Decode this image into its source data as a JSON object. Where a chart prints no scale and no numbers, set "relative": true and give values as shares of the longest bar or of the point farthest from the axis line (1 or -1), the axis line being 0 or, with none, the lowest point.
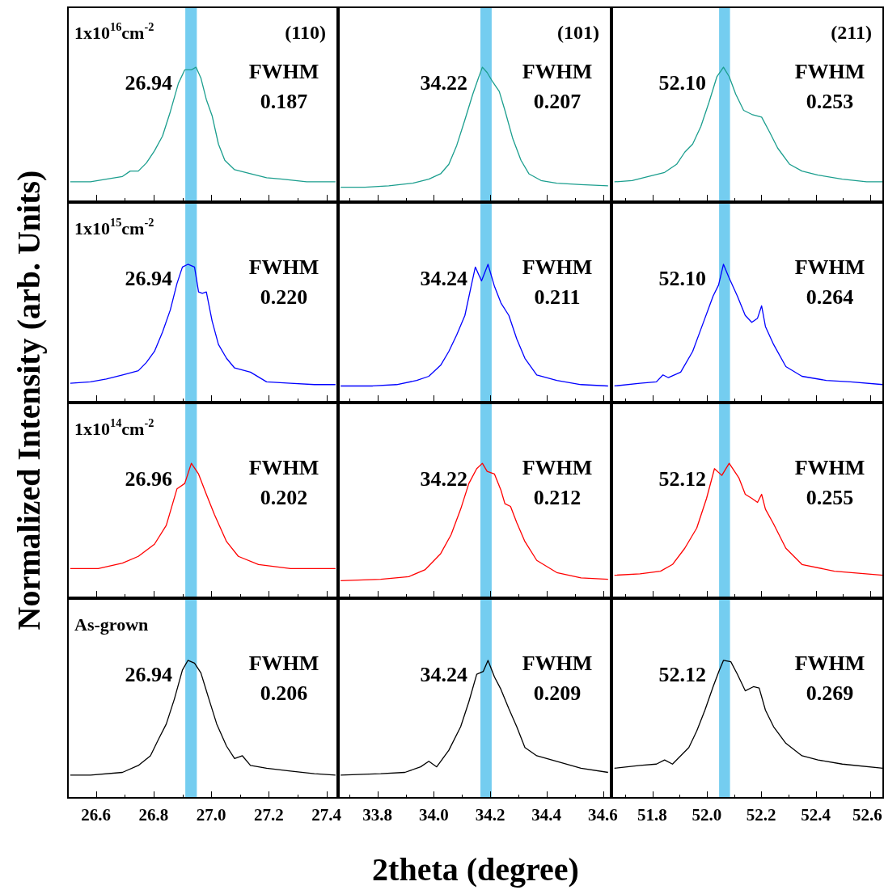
{
  "chart_data": [
    {
      "type": "line",
      "color": "#1b9e8e",
      "relative": true,
      "tick_labels": false,
      "ylabel": "Normalized  Intensity (arb. Units)",
      "xlim": [
        26.5,
        27.44
      ],
      "xticks": [
        26.6,
        {
          "value": 26.7,
          "label": null
        },
        26.8,
        {
          "value": 26.9,
          "label": null
        },
        27,
        {
          "value": 27.1,
          "label": null
        },
        27.2,
        {
          "value": 27.3,
          "label": null
        },
        27.4
      ],
      "bands": [
        {
          "axis": "x",
          "from": 26.91,
          "to": 26.95,
          "color": "#74cdf0"
        }
      ],
      "annotations": [
        "26.94",
        "FWHM",
        "0.187",
        "1x10$^{16}$cm$^{-2}$",
        "(110)"
      ],
      "x": [
        26.511,
        26.581,
        26.636,
        26.692,
        26.719,
        26.747,
        26.775,
        26.803,
        26.831,
        26.858,
        26.886,
        26.908,
        26.931,
        26.947,
        26.964,
        26.983,
        27.003,
        27.025,
        27.047,
        27.081,
        27.136,
        27.192,
        27.247,
        27.331,
        27.431
      ],
      "values": [
        0.15,
        0.15,
        0.17,
        0.19,
        0.23,
        0.23,
        0.29,
        0.38,
        0.49,
        0.67,
        0.88,
        0.98,
        0.98,
        1,
        0.92,
        0.76,
        0.64,
        0.43,
        0.31,
        0.24,
        0.21,
        0.18,
        0.17,
        0.15,
        0.15
      ]
    },
    {
      "type": "line",
      "color": "#1b9e8e",
      "relative": true,
      "tick_labels": false,
      "xlim": [
        33.66,
        34.63
      ],
      "xticks": [
        {
          "value": 33.7,
          "label": null
        },
        33.8,
        {
          "value": 33.9,
          "label": null
        },
        34,
        {
          "value": 34.1,
          "label": null
        },
        34.2,
        {
          "value": 34.3,
          "label": null
        },
        34.4,
        {
          "value": 34.5,
          "label": null
        },
        34.6
      ],
      "bands": [
        {
          "axis": "x",
          "from": 34.165,
          "to": 34.205,
          "color": "#74cdf0"
        }
      ],
      "annotations": [
        "34.22",
        "FWHM",
        "0.207",
        "(101)"
      ],
      "x": [
        33.669,
        33.755,
        33.84,
        33.925,
        33.982,
        34.024,
        34.053,
        34.081,
        34.11,
        34.138,
        34.158,
        34.172,
        34.189,
        34.209,
        34.232,
        34.252,
        34.28,
        34.309,
        34.337,
        34.38,
        34.436,
        34.522,
        34.618
      ],
      "values": [
        0.11,
        0.11,
        0.12,
        0.14,
        0.17,
        0.21,
        0.28,
        0.42,
        0.61,
        0.8,
        0.92,
        1,
        0.96,
        0.89,
        0.82,
        0.68,
        0.47,
        0.31,
        0.21,
        0.16,
        0.14,
        0.13,
        0.12
      ]
    },
    {
      "type": "line",
      "color": "#1b9e8e",
      "relative": true,
      "tick_labels": false,
      "xlim": [
        51.65,
        52.65
      ],
      "xticks": [
        {
          "value": 51.7,
          "label": null
        },
        51.8,
        {
          "value": 51.9,
          "label": null
        },
        52,
        {
          "value": 52.1,
          "label": null
        },
        52.2,
        {
          "value": 52.3,
          "label": null
        },
        52.4,
        {
          "value": 52.5,
          "label": null
        },
        52.6
      ],
      "bands": [
        {
          "axis": "x",
          "from": 52.045,
          "to": 52.085,
          "color": "#74cdf0"
        }
      ],
      "annotations": [
        "52.10",
        "FWHM",
        "0.253",
        "(211)"
      ],
      "x": [
        51.661,
        51.726,
        51.785,
        51.845,
        51.889,
        51.919,
        51.948,
        51.978,
        52.008,
        52.037,
        52.061,
        52.082,
        52.106,
        52.135,
        52.165,
        52.201,
        52.23,
        52.26,
        52.304,
        52.349,
        52.408,
        52.497,
        52.586,
        52.646
      ],
      "values": [
        0.15,
        0.16,
        0.19,
        0.22,
        0.28,
        0.37,
        0.43,
        0.56,
        0.74,
        0.93,
        1,
        0.93,
        0.8,
        0.68,
        0.65,
        0.63,
        0.52,
        0.4,
        0.28,
        0.23,
        0.2,
        0.17,
        0.15,
        0.15
      ]
    },
    {
      "type": "line",
      "color": "#0000ff",
      "relative": true,
      "tick_labels": false,
      "xlim": [
        26.5,
        27.44
      ],
      "xticks": [
        26.6,
        {
          "value": 26.7,
          "label": null
        },
        26.8,
        {
          "value": 26.9,
          "label": null
        },
        27,
        {
          "value": 27.1,
          "label": null
        },
        27.2,
        {
          "value": 27.3,
          "label": null
        },
        27.4
      ],
      "bands": [
        {
          "axis": "x",
          "from": 26.91,
          "to": 26.95,
          "color": "#74cdf0"
        }
      ],
      "annotations": [
        "26.94",
        "FWHM",
        "0.220",
        "1x10$^{15}$cm$^{-2}$"
      ],
      "x": [
        26.511,
        26.581,
        26.636,
        26.692,
        26.747,
        26.775,
        26.803,
        26.831,
        26.858,
        26.881,
        26.9,
        26.919,
        26.942,
        26.956,
        26.969,
        26.983,
        27.003,
        27.025,
        27.053,
        27.081,
        27.136,
        27.192,
        27.275,
        27.358,
        27.431
      ],
      "values": [
        0.14,
        0.15,
        0.17,
        0.2,
        0.23,
        0.29,
        0.37,
        0.51,
        0.67,
        0.86,
        0.98,
        1,
        0.98,
        0.8,
        0.79,
        0.8,
        0.59,
        0.42,
        0.32,
        0.25,
        0.22,
        0.15,
        0.14,
        0.13,
        0.13
      ]
    },
    {
      "type": "line",
      "color": "#0000ff",
      "relative": true,
      "tick_labels": false,
      "xlim": [
        33.66,
        34.63
      ],
      "xticks": [
        {
          "value": 33.7,
          "label": null
        },
        33.8,
        {
          "value": 33.9,
          "label": null
        },
        34,
        {
          "value": 34.1,
          "label": null
        },
        34.2,
        {
          "value": 34.3,
          "label": null
        },
        34.4,
        {
          "value": 34.5,
          "label": null
        },
        34.6
      ],
      "bands": [
        {
          "axis": "x",
          "from": 34.165,
          "to": 34.205,
          "color": "#74cdf0"
        }
      ],
      "annotations": [
        "34.24",
        "FWHM",
        "0.211"
      ],
      "x": [
        33.669,
        33.783,
        33.868,
        33.939,
        33.982,
        34.024,
        34.053,
        34.081,
        34.11,
        34.132,
        34.147,
        34.169,
        34.192,
        34.215,
        34.238,
        34.266,
        34.294,
        34.323,
        34.365,
        34.436,
        34.522,
        34.618
      ],
      "values": [
        0.12,
        0.12,
        0.13,
        0.16,
        0.19,
        0.27,
        0.37,
        0.49,
        0.63,
        0.84,
        0.98,
        0.88,
        1,
        0.84,
        0.72,
        0.63,
        0.46,
        0.32,
        0.2,
        0.16,
        0.13,
        0.12
      ]
    },
    {
      "type": "line",
      "color": "#0000ff",
      "relative": true,
      "tick_labels": false,
      "xlim": [
        51.65,
        52.65
      ],
      "xticks": [
        {
          "value": 51.7,
          "label": null
        },
        51.8,
        {
          "value": 51.9,
          "label": null
        },
        52,
        {
          "value": 52.1,
          "label": null
        },
        52.2,
        {
          "value": 52.3,
          "label": null
        },
        52.4,
        {
          "value": 52.5,
          "label": null
        },
        52.6
      ],
      "bands": [
        {
          "axis": "x",
          "from": 52.045,
          "to": 52.085,
          "color": "#74cdf0"
        }
      ],
      "annotations": [
        "52.10",
        "FWHM",
        "0.264"
      ],
      "x": [
        51.661,
        51.755,
        51.815,
        51.839,
        51.859,
        51.904,
        51.948,
        51.978,
        52.008,
        52.023,
        52.043,
        52.061,
        52.082,
        52.112,
        52.141,
        52.165,
        52.186,
        52.201,
        52.215,
        52.245,
        52.29,
        52.349,
        52.438,
        52.527,
        52.646
      ],
      "values": [
        0.12,
        0.14,
        0.15,
        0.2,
        0.18,
        0.22,
        0.37,
        0.53,
        0.69,
        0.77,
        0.85,
        1,
        0.9,
        0.77,
        0.63,
        0.58,
        0.61,
        0.7,
        0.55,
        0.42,
        0.26,
        0.19,
        0.16,
        0.15,
        0.13
      ]
    },
    {
      "type": "line",
      "color": "#ff0000",
      "relative": true,
      "tick_labels": false,
      "xlim": [
        26.5,
        27.44
      ],
      "xticks": [
        26.6,
        {
          "value": 26.7,
          "label": null
        },
        26.8,
        {
          "value": 26.9,
          "label": null
        },
        27,
        {
          "value": 27.1,
          "label": null
        },
        27.2,
        {
          "value": 27.3,
          "label": null
        },
        27.4
      ],
      "bands": [
        {
          "axis": "x",
          "from": 26.91,
          "to": 26.95,
          "color": "#74cdf0"
        }
      ],
      "annotations": [
        "26.96",
        "FWHM",
        "0.202",
        "1x10$^{14}$cm$^{-2}$"
      ],
      "x": [
        26.511,
        26.608,
        26.692,
        26.747,
        26.803,
        26.844,
        26.881,
        26.908,
        26.931,
        26.956,
        26.983,
        27.011,
        27.053,
        27.094,
        27.164,
        27.275,
        27.431
      ],
      "values": [
        0.22,
        0.22,
        0.26,
        0.31,
        0.4,
        0.54,
        0.81,
        0.85,
        1,
        0.92,
        0.77,
        0.62,
        0.42,
        0.31,
        0.25,
        0.22,
        0.22
      ]
    },
    {
      "type": "line",
      "color": "#ff0000",
      "relative": true,
      "tick_labels": false,
      "xlim": [
        33.66,
        34.63
      ],
      "xticks": [
        {
          "value": 33.7,
          "label": null
        },
        33.8,
        {
          "value": 33.9,
          "label": null
        },
        34,
        {
          "value": 34.1,
          "label": null
        },
        34.2,
        {
          "value": 34.3,
          "label": null
        },
        34.4,
        {
          "value": 34.5,
          "label": null
        },
        34.6
      ],
      "bands": [
        {
          "axis": "x",
          "from": 34.165,
          "to": 34.205,
          "color": "#74cdf0"
        }
      ],
      "annotations": [
        "34.22",
        "FWHM",
        "0.212"
      ],
      "x": [
        33.669,
        33.811,
        33.911,
        33.968,
        34.024,
        34.061,
        34.095,
        34.124,
        34.152,
        34.172,
        34.189,
        34.215,
        34.238,
        34.252,
        34.272,
        34.294,
        34.323,
        34.365,
        34.436,
        34.522,
        34.618
      ],
      "values": [
        0.13,
        0.14,
        0.16,
        0.21,
        0.33,
        0.47,
        0.66,
        0.85,
        0.96,
        1,
        0.94,
        0.92,
        0.8,
        0.7,
        0.68,
        0.56,
        0.42,
        0.28,
        0.19,
        0.15,
        0.14
      ]
    },
    {
      "type": "line",
      "color": "#ff0000",
      "relative": true,
      "tick_labels": false,
      "xlim": [
        51.65,
        52.65
      ],
      "xticks": [
        {
          "value": 51.7,
          "label": null
        },
        51.8,
        {
          "value": 51.9,
          "label": null
        },
        52,
        {
          "value": 52.1,
          "label": null
        },
        52.2,
        {
          "value": 52.3,
          "label": null
        },
        52.4,
        {
          "value": 52.5,
          "label": null
        },
        52.6
      ],
      "bands": [
        {
          "axis": "x",
          "from": 52.045,
          "to": 52.085,
          "color": "#74cdf0"
        }
      ],
      "annotations": [
        "52.12",
        "FWHM",
        "0.255"
      ],
      "x": [
        51.661,
        51.755,
        51.83,
        51.874,
        51.919,
        51.963,
        51.999,
        52.028,
        52.055,
        52.082,
        52.118,
        52.141,
        52.165,
        52.186,
        52.201,
        52.215,
        52.245,
        52.29,
        52.349,
        52.468,
        52.646
      ],
      "values": [
        0.17,
        0.18,
        0.2,
        0.25,
        0.37,
        0.52,
        0.74,
        0.96,
        0.91,
        1,
        0.89,
        0.77,
        0.74,
        0.71,
        0.77,
        0.66,
        0.55,
        0.37,
        0.25,
        0.2,
        0.17
      ]
    },
    {
      "type": "line",
      "color": "#000000",
      "relative": true,
      "tick_labels": "x",
      "xlim": [
        26.5,
        27.44
      ],
      "xticks": [
        26.6,
        {
          "value": 26.7,
          "label": null
        },
        26.8,
        {
          "value": 26.9,
          "label": null
        },
        {
          "value": 27,
          "label": "27.0"
        },
        {
          "value": 27.1,
          "label": null
        },
        27.2,
        {
          "value": 27.3,
          "label": null
        },
        27.4
      ],
      "bands": [
        {
          "axis": "x",
          "from": 26.91,
          "to": 26.95,
          "color": "#74cdf0"
        }
      ],
      "annotations": [
        "26.94",
        "FWHM",
        "0.206",
        "As-grown"
      ],
      "x": [
        26.511,
        26.581,
        26.692,
        26.747,
        26.789,
        26.817,
        26.844,
        26.872,
        26.9,
        26.919,
        26.942,
        26.964,
        26.992,
        27.019,
        27.053,
        27.081,
        27.108,
        27.136,
        27.192,
        27.275,
        27.358,
        27.431
      ],
      "values": [
        0.17,
        0.17,
        0.19,
        0.24,
        0.31,
        0.43,
        0.54,
        0.72,
        0.93,
        1,
        0.98,
        0.91,
        0.72,
        0.54,
        0.38,
        0.29,
        0.31,
        0.24,
        0.22,
        0.2,
        0.18,
        0.17
      ]
    },
    {
      "type": "line",
      "color": "#000000",
      "relative": true,
      "tick_labels": "x",
      "xlabel": "2theta (degree)",
      "xlim": [
        33.66,
        34.63
      ],
      "xticks": [
        {
          "value": 33.7,
          "label": null
        },
        33.8,
        {
          "value": 33.9,
          "label": null
        },
        {
          "value": 34,
          "label": "34.0"
        },
        {
          "value": 34.1,
          "label": null
        },
        34.2,
        {
          "value": 34.3,
          "label": null
        },
        34.4,
        {
          "value": 34.5,
          "label": null
        },
        34.6
      ],
      "bands": [
        {
          "axis": "x",
          "from": 34.165,
          "to": 34.205,
          "color": "#74cdf0"
        }
      ],
      "annotations": [
        "34.24",
        "FWHM",
        "0.209"
      ],
      "x": [
        33.669,
        33.811,
        33.897,
        33.953,
        33.982,
        34.01,
        34.053,
        34.095,
        34.124,
        34.152,
        34.175,
        34.192,
        34.215,
        34.238,
        34.266,
        34.294,
        34.323,
        34.365,
        34.436,
        34.522,
        34.618
      ],
      "values": [
        0.17,
        0.18,
        0.19,
        0.23,
        0.27,
        0.23,
        0.35,
        0.52,
        0.7,
        0.9,
        0.92,
        1,
        0.88,
        0.79,
        0.65,
        0.52,
        0.37,
        0.31,
        0.27,
        0.22,
        0.19
      ]
    },
    {
      "type": "line",
      "color": "#000000",
      "relative": true,
      "tick_labels": "x",
      "xlim": [
        51.65,
        52.65
      ],
      "xticks": [
        {
          "value": 51.7,
          "label": null
        },
        51.8,
        {
          "value": 51.9,
          "label": null
        },
        {
          "value": 52,
          "label": "52.0"
        },
        {
          "value": 52.1,
          "label": null
        },
        52.2,
        {
          "value": 52.3,
          "label": null
        },
        52.4,
        {
          "value": 52.5,
          "label": null
        },
        52.6
      ],
      "bands": [
        {
          "axis": "x",
          "from": 52.045,
          "to": 52.085,
          "color": "#74cdf0"
        }
      ],
      "annotations": [
        "52.12",
        "FWHM",
        "0.269"
      ],
      "x": [
        51.661,
        51.755,
        51.815,
        51.845,
        51.874,
        51.904,
        51.934,
        51.963,
        51.993,
        52.023,
        52.046,
        52.061,
        52.088,
        52.112,
        52.141,
        52.171,
        52.192,
        52.215,
        52.245,
        52.29,
        52.349,
        52.408,
        52.497,
        52.646
      ],
      "values": [
        0.22,
        0.24,
        0.25,
        0.28,
        0.25,
        0.31,
        0.37,
        0.49,
        0.64,
        0.81,
        0.93,
        1,
        0.99,
        0.9,
        0.78,
        0.81,
        0.8,
        0.64,
        0.52,
        0.4,
        0.31,
        0.28,
        0.25,
        0.22
      ]
    }
  ]
}
